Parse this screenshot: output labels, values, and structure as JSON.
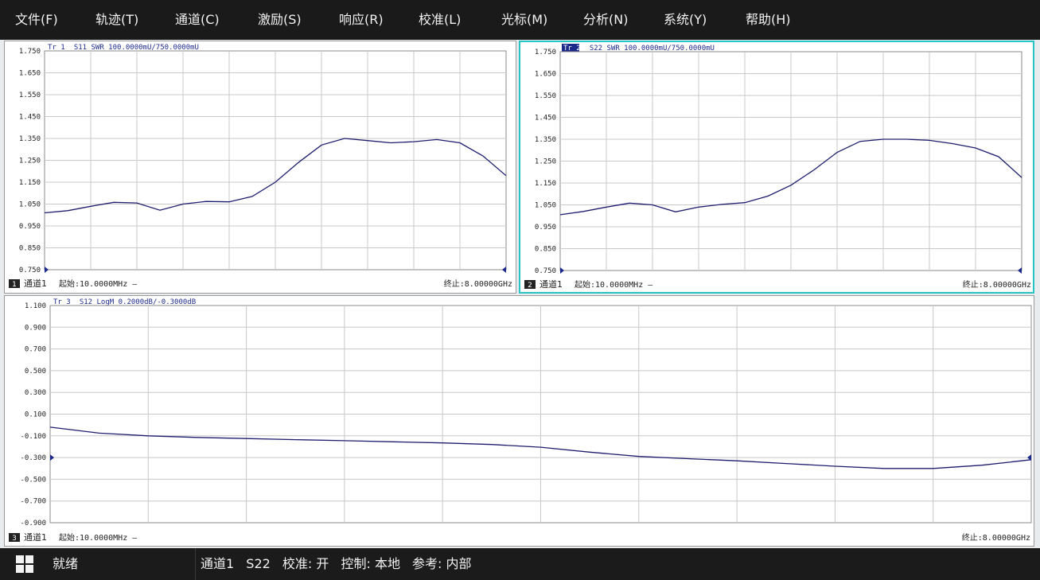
{
  "menu": [
    "文件(F)",
    "轨迹(T)",
    "通道(C)",
    "激励(S)",
    "响应(R)",
    "校准(L)",
    "光标(M)",
    "分析(N)",
    "系统(Y)",
    "帮助(H)"
  ],
  "panels": [
    {
      "trace_number": "1",
      "header": "Tr 1  S11 SWR 100.0000mU/750.0000mU",
      "header_tr": "Tr 1",
      "header_rest": "  S11 SWR 100.0000mU/750.0000mU",
      "y_ticks": [
        "1.750",
        "1.650",
        "1.550",
        "1.450",
        "1.350",
        "1.250",
        "1.150",
        "1.050",
        "0.950",
        "0.850",
        "0.750"
      ],
      "channel": "通道1",
      "start": "起始:10.0000MHz —",
      "stop": "终止:8.00000GHz",
      "active": false,
      "trace_color": "#1d1d6e"
    },
    {
      "trace_number": "2",
      "header": "Tr 2  S22 SWR 100.0000mU/750.0000mU",
      "header_tr": "Tr 2",
      "header_rest": "  S22 SWR 100.0000mU/750.0000mU",
      "y_ticks": [
        "1.750",
        "1.650",
        "1.550",
        "1.450",
        "1.350",
        "1.250",
        "1.150",
        "1.050",
        "0.950",
        "0.850",
        "0.750"
      ],
      "channel": "通道1",
      "start": "起始:10.0000MHz —",
      "stop": "终止:8.00000GHz",
      "active": true,
      "trace_color": "#1d1d6e"
    },
    {
      "trace_number": "3",
      "header": "Tr 3  S12 LogM 0.2000dB/-0.3000dB",
      "header_tr": "Tr 3",
      "header_rest": "  S12 LogM 0.2000dB/-0.3000dB",
      "y_ticks": [
        "1.100",
        "0.900",
        "0.700",
        "0.500",
        "0.300",
        "0.100",
        "-0.100",
        "-0.300",
        "-0.500",
        "-0.700",
        "-0.900"
      ],
      "channel": "通道1",
      "start": "起始:10.0000MHz —",
      "stop": "终止:8.00000GHz",
      "active": false,
      "trace_color": "#1d1d6e"
    }
  ],
  "chart_data": [
    {
      "type": "line",
      "title": "Tr 1  S11 SWR 100.0000mU/750.0000mU",
      "x_start": "10.0000MHz",
      "x_stop": "8.00000GHz",
      "x_frac": [
        0,
        0.05,
        0.1,
        0.15,
        0.2,
        0.25,
        0.3,
        0.35,
        0.4,
        0.45,
        0.5,
        0.55,
        0.6,
        0.65,
        0.7,
        0.75,
        0.8,
        0.85,
        0.9,
        0.95,
        1.0
      ],
      "series": [
        {
          "values": [
            1.01,
            1.02,
            1.04,
            1.058,
            1.055,
            1.022,
            1.05,
            1.062,
            1.06,
            1.085,
            1.15,
            1.24,
            1.32,
            1.35,
            1.34,
            1.33,
            1.335,
            1.345,
            1.33,
            1.27,
            1.18
          ]
        }
      ],
      "ylim": [
        0.75,
        1.75
      ],
      "reference_level": 0.75,
      "grid": true
    },
    {
      "type": "line",
      "title": "Tr 2  S22 SWR 100.0000mU/750.0000mU",
      "x_start": "10.0000MHz",
      "x_stop": "8.00000GHz",
      "x_frac": [
        0,
        0.05,
        0.1,
        0.15,
        0.2,
        0.25,
        0.3,
        0.35,
        0.4,
        0.45,
        0.5,
        0.55,
        0.6,
        0.65,
        0.7,
        0.75,
        0.8,
        0.85,
        0.9,
        0.95,
        1.0
      ],
      "series": [
        {
          "values": [
            1.005,
            1.02,
            1.04,
            1.058,
            1.05,
            1.018,
            1.04,
            1.052,
            1.06,
            1.09,
            1.14,
            1.21,
            1.29,
            1.34,
            1.35,
            1.35,
            1.345,
            1.33,
            1.31,
            1.27,
            1.175
          ]
        }
      ],
      "ylim": [
        0.75,
        1.75
      ],
      "reference_level": 0.75,
      "grid": true
    },
    {
      "type": "line",
      "title": "Tr 3  S12 LogM 0.2000dB/-0.3000dB",
      "x_start": "10.0000MHz",
      "x_stop": "8.00000GHz",
      "x_frac": [
        0,
        0.05,
        0.1,
        0.15,
        0.2,
        0.25,
        0.3,
        0.35,
        0.4,
        0.45,
        0.5,
        0.55,
        0.6,
        0.65,
        0.7,
        0.75,
        0.8,
        0.85,
        0.9,
        0.95,
        1.0
      ],
      "series": [
        {
          "values": [
            -0.02,
            -0.075,
            -0.1,
            -0.115,
            -0.125,
            -0.135,
            -0.145,
            -0.155,
            -0.165,
            -0.18,
            -0.205,
            -0.25,
            -0.29,
            -0.31,
            -0.33,
            -0.355,
            -0.38,
            -0.4,
            -0.4,
            -0.37,
            -0.32
          ]
        }
      ],
      "ylim": [
        -0.9,
        1.1
      ],
      "reference_level": -0.3,
      "grid": true
    }
  ],
  "status": {
    "ready": "就绪",
    "channel": "通道1",
    "param": "S22",
    "cal": "校准: 开",
    "control": "控制: 本地",
    "ref": "参考: 内部"
  }
}
